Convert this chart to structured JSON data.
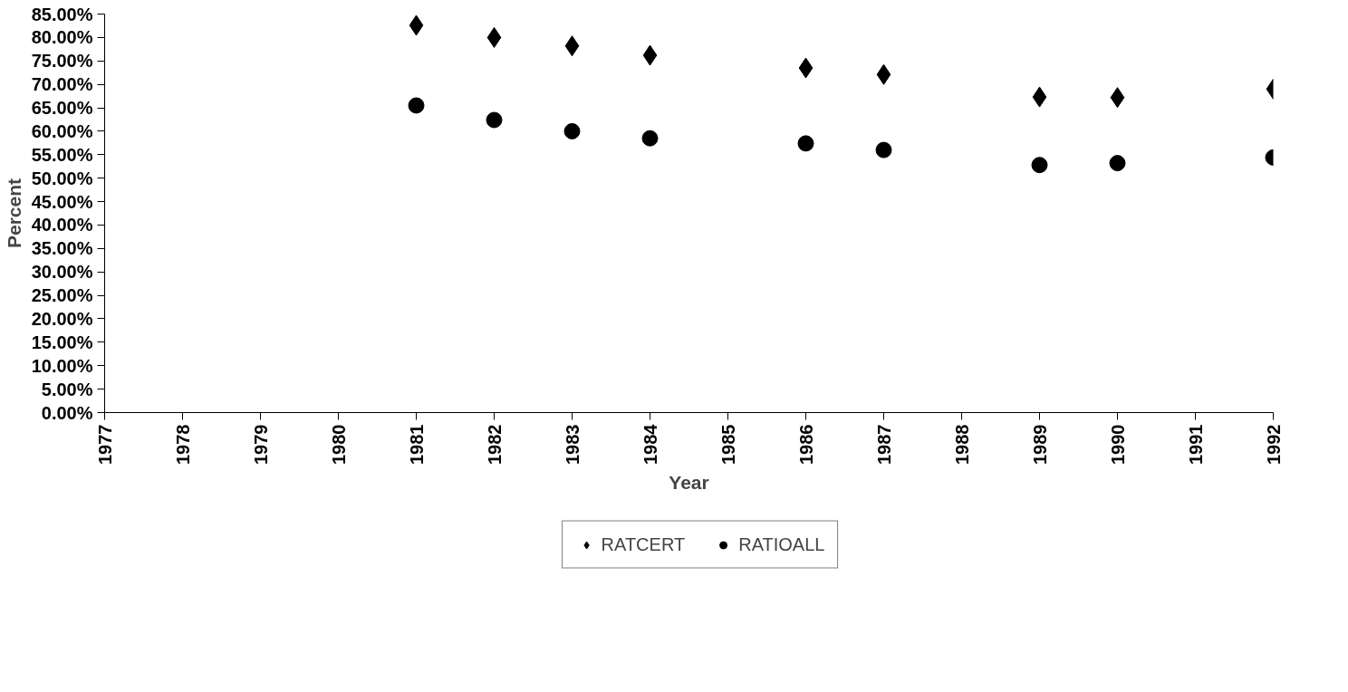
{
  "chart_data": {
    "type": "scatter",
    "xlabel": "Year",
    "ylabel": "Percent",
    "x": [
      1981,
      1982,
      1983,
      1984,
      1986,
      1987,
      1989,
      1990,
      1992
    ],
    "series": [
      {
        "name": "RATCERT",
        "color": "#000000",
        "marker": "diamond",
        "values": [
          82.6,
          80.0,
          78.2,
          76.2,
          73.5,
          72.1,
          67.3,
          67.2,
          69.0
        ]
      },
      {
        "name": "RATIOALL",
        "color": "#000000",
        "marker": "circle",
        "values": [
          65.5,
          62.4,
          60.0,
          58.5,
          57.4,
          56.0,
          52.8,
          53.2,
          54.4
        ]
      }
    ],
    "xlim": [
      1977,
      1992
    ],
    "xticks": [
      1977,
      1978,
      1979,
      1980,
      1981,
      1982,
      1983,
      1984,
      1985,
      1986,
      1987,
      1988,
      1989,
      1990,
      1991,
      1992
    ],
    "ylim": [
      0,
      85
    ],
    "yticks": [
      {
        "value": 0,
        "label": "0.00%"
      },
      {
        "value": 5,
        "label": "5.00%"
      },
      {
        "value": 10,
        "label": "10.00%"
      },
      {
        "value": 15,
        "label": "15.00%"
      },
      {
        "value": 20,
        "label": "20.00%"
      },
      {
        "value": 25,
        "label": "25.00%"
      },
      {
        "value": 30,
        "label": "30.00%"
      },
      {
        "value": 35,
        "label": "35.00%"
      },
      {
        "value": 40,
        "label": "40.00%"
      },
      {
        "value": 45,
        "label": "45.00%"
      },
      {
        "value": 50,
        "label": "50.00%"
      },
      {
        "value": 55,
        "label": "55.00%"
      },
      {
        "value": 60,
        "label": "60.00%"
      },
      {
        "value": 65,
        "label": "65.00%"
      },
      {
        "value": 70,
        "label": "70.00%"
      },
      {
        "value": 75,
        "label": "75.00%"
      },
      {
        "value": 80,
        "label": "80.00%"
      },
      {
        "value": 85,
        "label": "85.00%"
      }
    ],
    "grid": false,
    "legend": "bottom"
  }
}
